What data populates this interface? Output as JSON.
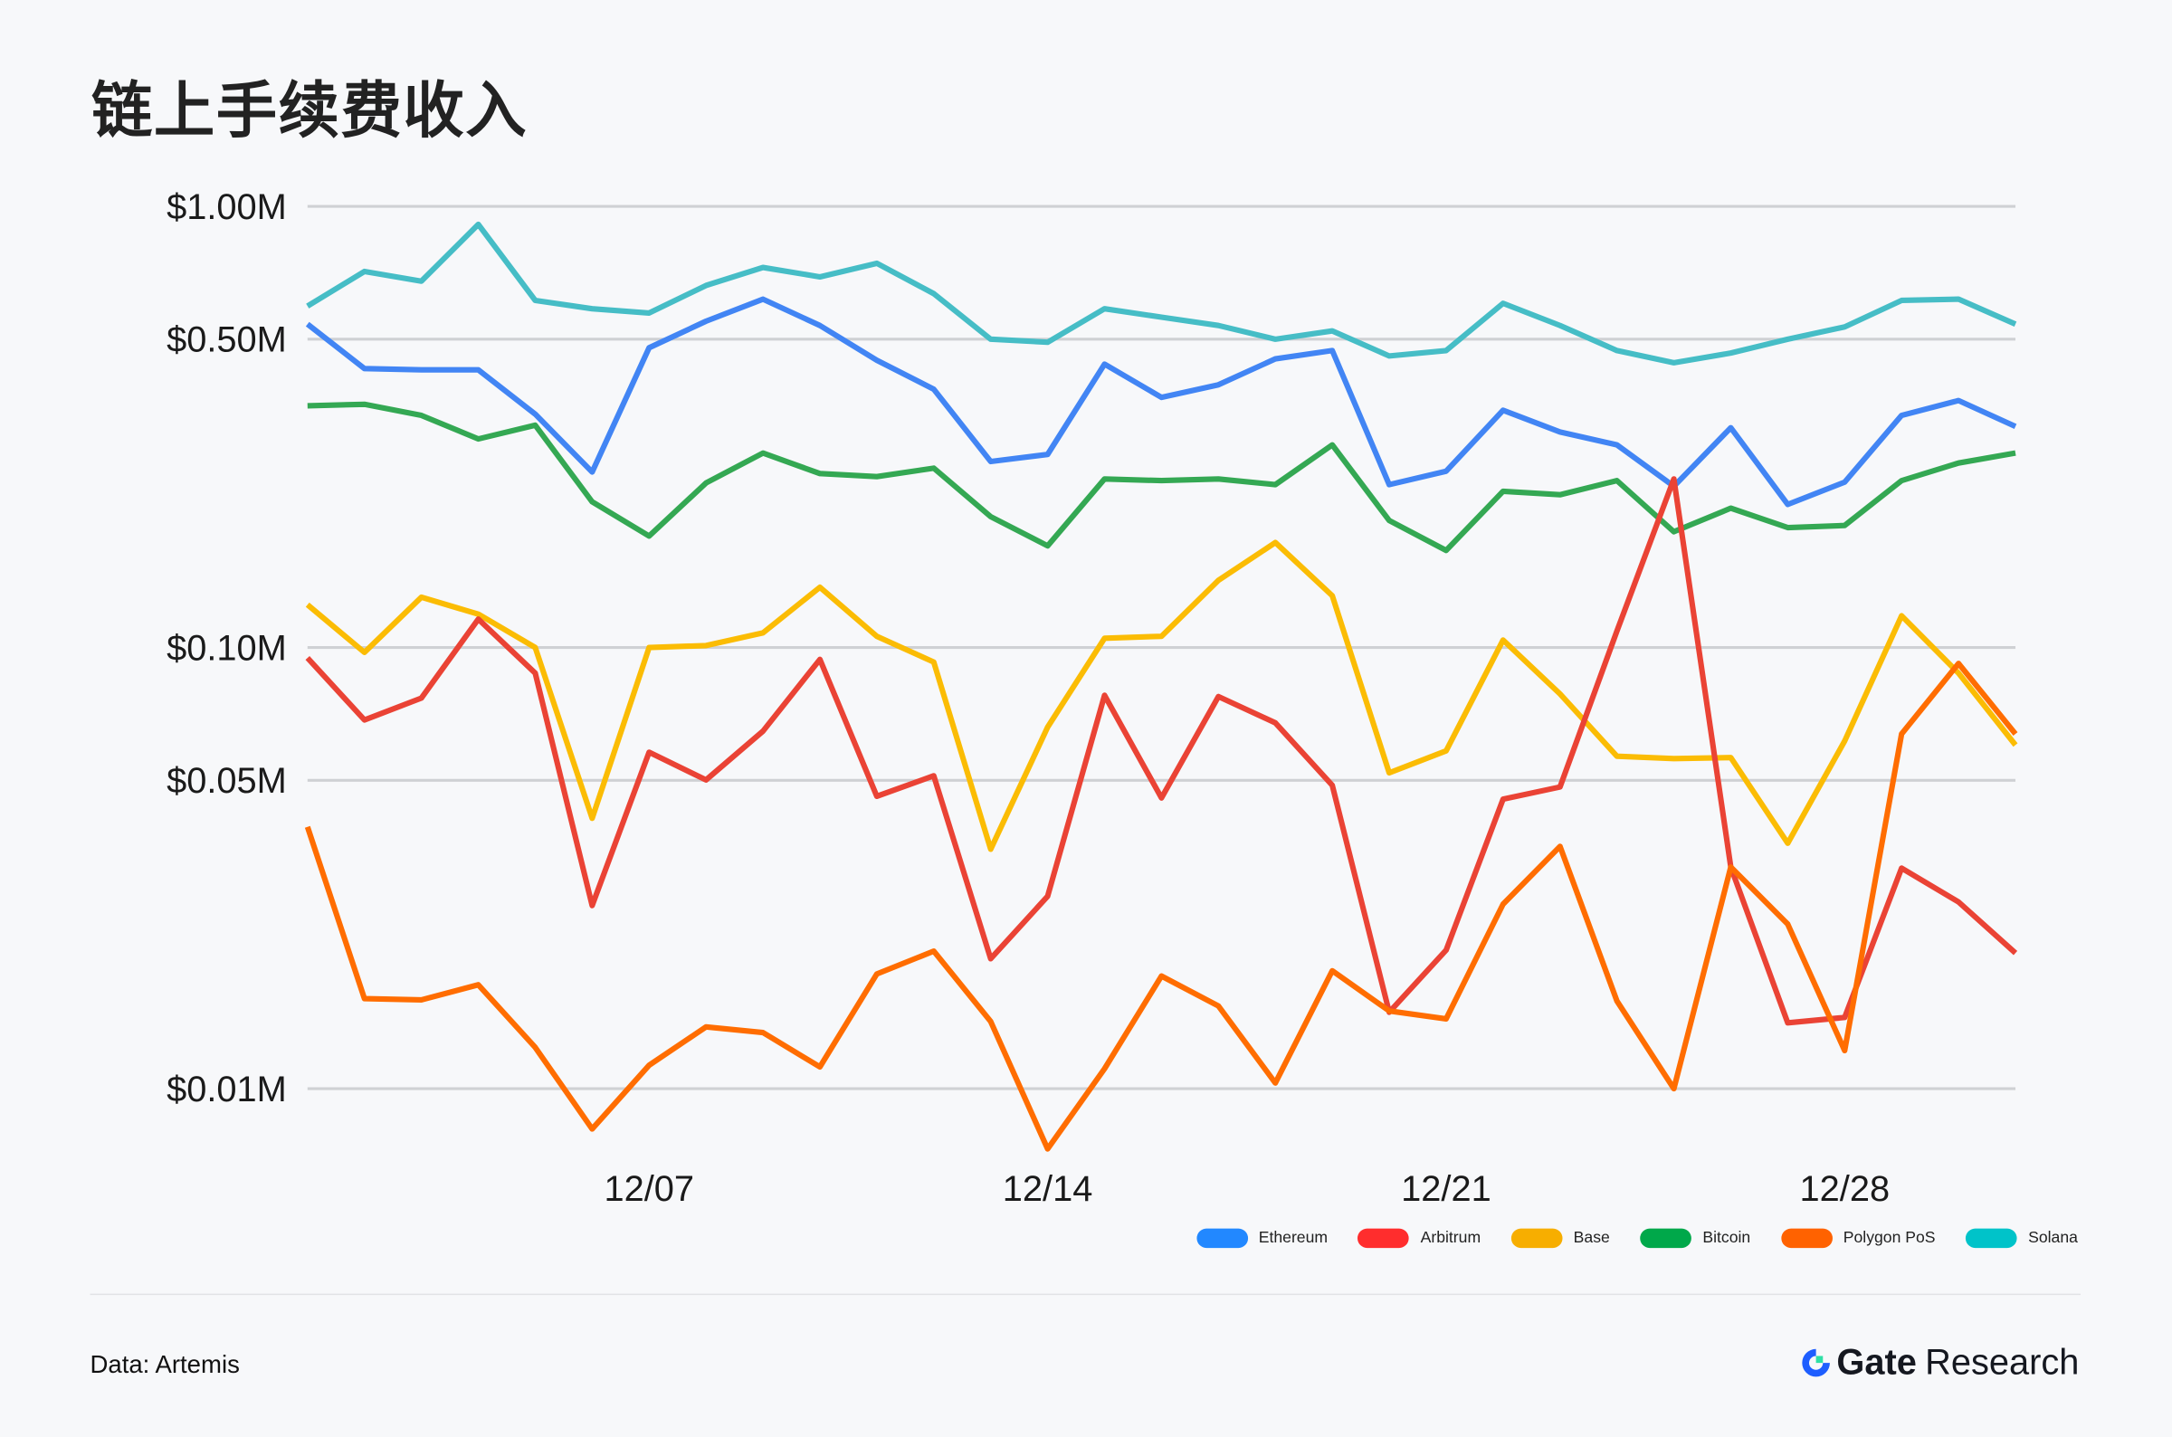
{
  "title": "链上手续费收入",
  "footer": {
    "source": "Data: Artemis",
    "logo_brand": "Gate",
    "logo_suffix": "Research"
  },
  "chart_data": {
    "type": "line",
    "title": "链上手续费收入",
    "y_scale": "log",
    "ylim": [
      0.008,
      1.0
    ],
    "y_ticks": [
      1.0,
      0.5,
      0.1,
      0.05,
      0.01
    ],
    "y_tick_labels": [
      "$1.00M",
      "$0.50M",
      "$0.10M",
      "$0.05M",
      "$0.01M"
    ],
    "y_unit": "USD millions",
    "x_ticks": [
      "12/07",
      "12/14",
      "12/21",
      "12/28"
    ],
    "x": [
      "12/01",
      "12/02",
      "12/03",
      "12/04",
      "12/05",
      "12/06",
      "12/07",
      "12/08",
      "12/09",
      "12/10",
      "12/11",
      "12/12",
      "12/13",
      "12/14",
      "12/15",
      "12/16",
      "12/17",
      "12/18",
      "12/19",
      "12/20",
      "12/21",
      "12/22",
      "12/23",
      "12/24",
      "12/25",
      "12/26",
      "12/27",
      "12/28",
      "12/29",
      "12/30",
      "12/31"
    ],
    "grid": true,
    "legend_position": "bottom-right",
    "series": [
      {
        "name": "Ethereum",
        "color": "#4285f4",
        "legend_color": "#2288ff",
        "values": [
          0.541,
          0.429,
          0.426,
          0.426,
          0.338,
          0.25,
          0.478,
          0.549,
          0.616,
          0.537,
          0.448,
          0.385,
          0.264,
          0.274,
          0.439,
          0.369,
          0.394,
          0.451,
          0.471,
          0.234,
          0.251,
          0.345,
          0.308,
          0.288,
          0.232,
          0.315,
          0.211,
          0.237,
          0.336,
          0.363,
          0.317
        ]
      },
      {
        "name": "Arbitrum",
        "color": "#ea4335",
        "legend_color": "#ff2d2d",
        "values": [
          0.0947,
          0.0685,
          0.0768,
          0.116,
          0.0875,
          0.026,
          0.0579,
          0.0501,
          0.0646,
          0.094,
          0.046,
          0.0512,
          0.0197,
          0.0273,
          0.0779,
          0.0456,
          0.0774,
          0.0675,
          0.0487,
          0.0149,
          0.0206,
          0.0453,
          0.0483,
          0.109,
          0.241,
          0.0318,
          0.0141,
          0.0145,
          0.0316,
          0.0265,
          0.0203
        ]
      },
      {
        "name": "Base",
        "color": "#fbbc04",
        "legend_color": "#f7ae00",
        "values": [
          0.125,
          0.0975,
          0.13,
          0.119,
          0.1,
          0.041,
          0.1,
          0.101,
          0.108,
          0.137,
          0.106,
          0.0927,
          0.0349,
          0.066,
          0.105,
          0.106,
          0.142,
          0.173,
          0.131,
          0.052,
          0.0583,
          0.104,
          0.0785,
          0.0567,
          0.056,
          0.0563,
          0.036,
          0.0614,
          0.118,
          0.0875,
          0.0601
        ]
      },
      {
        "name": "Bitcoin",
        "color": "#34a853",
        "legend_color": "#00a84a",
        "values": [
          0.353,
          0.356,
          0.336,
          0.297,
          0.319,
          0.214,
          0.179,
          0.236,
          0.276,
          0.248,
          0.244,
          0.255,
          0.198,
          0.17,
          0.241,
          0.239,
          0.241,
          0.234,
          0.288,
          0.194,
          0.166,
          0.226,
          0.222,
          0.239,
          0.183,
          0.207,
          0.187,
          0.189,
          0.239,
          0.262,
          0.276
        ]
      },
      {
        "name": "Polygon PoS",
        "color": "#ff6d01",
        "legend_color": "#ff6200",
        "values": [
          0.0392,
          0.016,
          0.0159,
          0.0172,
          0.0124,
          0.0081,
          0.0113,
          0.0138,
          0.0134,
          0.0112,
          0.0182,
          0.0205,
          0.0142,
          0.0073,
          0.0111,
          0.018,
          0.0154,
          0.0103,
          0.0185,
          0.015,
          0.0144,
          0.0262,
          0.0354,
          0.0158,
          0.01,
          0.0318,
          0.0236,
          0.0122,
          0.0637,
          0.092,
          0.0637
        ]
      },
      {
        "name": "Solana",
        "color": "#46bdc6",
        "legend_color": "#00c3c9",
        "values": [
          0.594,
          0.712,
          0.677,
          0.91,
          0.612,
          0.586,
          0.573,
          0.662,
          0.727,
          0.692,
          0.743,
          0.634,
          0.5,
          0.492,
          0.586,
          0.561,
          0.537,
          0.5,
          0.522,
          0.458,
          0.471,
          0.603,
          0.537,
          0.471,
          0.442,
          0.465,
          0.5,
          0.533,
          0.612,
          0.616,
          0.541
        ]
      }
    ]
  }
}
